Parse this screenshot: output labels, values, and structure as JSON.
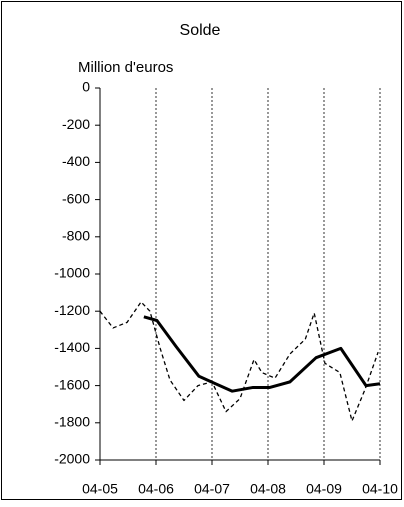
{
  "chart_data": {
    "type": "line",
    "title": "Solde",
    "y_label": "Million d'euros",
    "xlim": [
      0,
      60
    ],
    "xticks": [
      {
        "value": 0,
        "label": "04-05"
      },
      {
        "value": 12,
        "label": "04-06"
      },
      {
        "value": 24,
        "label": "04-07"
      },
      {
        "value": 36,
        "label": "04-08"
      },
      {
        "value": 48,
        "label": "04-09"
      },
      {
        "value": 60,
        "label": "04-10"
      }
    ],
    "ylim": [
      -2000,
      0
    ],
    "yticks": [
      0,
      -200,
      -400,
      -600,
      -800,
      -1000,
      -1200,
      -1400,
      -1600,
      -1800,
      -2000
    ],
    "grid": true,
    "series": [
      {
        "color": "#000000",
        "line_style": "dashed",
        "x": [
          0,
          2.8,
          5.8,
          8.8,
          10.7,
          12.9,
          15,
          18,
          21,
          24,
          27,
          30,
          33,
          34.7,
          37.5,
          40.7,
          44,
          45.9,
          48.2,
          51.4,
          54,
          56.8,
          59.6
        ],
        "values": [
          -1200,
          -1290,
          -1260,
          -1150,
          -1200,
          -1400,
          -1570,
          -1680,
          -1600,
          -1580,
          -1740,
          -1670,
          -1460,
          -1530,
          -1560,
          -1430,
          -1350,
          -1210,
          -1480,
          -1530,
          -1790,
          -1620,
          -1420
        ]
      },
      {
        "color": "#000000",
        "line_style": "solid",
        "x": [
          9.4,
          12.2,
          16.3,
          21.2,
          28.3,
          32.8,
          36.4,
          40.7,
          46.3,
          51.6,
          57,
          60
        ],
        "values": [
          -1230,
          -1250,
          -1390,
          -1550,
          -1630,
          -1610,
          -1610,
          -1580,
          -1450,
          -1400,
          -1600,
          -1590
        ]
      }
    ]
  }
}
